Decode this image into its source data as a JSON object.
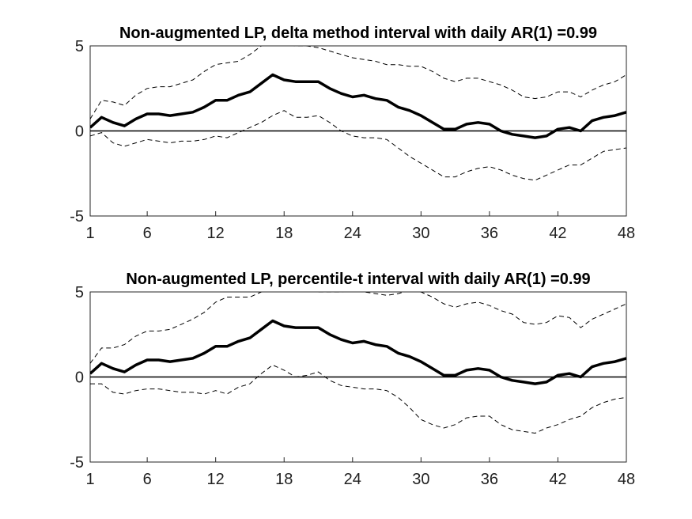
{
  "chart_data": [
    {
      "type": "line",
      "title": "Non-augmented LP, delta method interval with daily AR(1) =0.99",
      "xlabel": "",
      "ylabel": "",
      "xlim": [
        1,
        48
      ],
      "ylim": [
        -5,
        5
      ],
      "xticks": [
        1,
        6,
        12,
        18,
        24,
        30,
        36,
        42,
        48
      ],
      "yticks": [
        -5,
        0,
        5
      ],
      "zero_line": true,
      "grid": false,
      "x": [
        1,
        2,
        3,
        4,
        5,
        6,
        7,
        8,
        9,
        10,
        11,
        12,
        13,
        14,
        15,
        16,
        17,
        18,
        19,
        20,
        21,
        22,
        23,
        24,
        25,
        26,
        27,
        28,
        29,
        30,
        31,
        32,
        33,
        34,
        35,
        36,
        37,
        38,
        39,
        40,
        41,
        42,
        43,
        44,
        45,
        46,
        47,
        48
      ],
      "series": [
        {
          "style": "solid-thick",
          "values": [
            0.2,
            0.8,
            0.5,
            0.3,
            0.7,
            1.0,
            1.0,
            0.9,
            1.0,
            1.1,
            1.4,
            1.8,
            1.8,
            2.1,
            2.3,
            2.8,
            3.3,
            3.0,
            2.9,
            2.9,
            2.9,
            2.5,
            2.2,
            2.0,
            2.1,
            1.9,
            1.8,
            1.4,
            1.2,
            0.9,
            0.5,
            0.1,
            0.1,
            0.4,
            0.5,
            0.4,
            0.0,
            -0.2,
            -0.3,
            -0.4,
            -0.3,
            0.1,
            0.2,
            0.0,
            0.6,
            0.8,
            0.9,
            1.1
          ]
        },
        {
          "style": "dashed",
          "values": [
            0.7,
            1.8,
            1.7,
            1.5,
            2.1,
            2.5,
            2.6,
            2.6,
            2.8,
            3.0,
            3.5,
            3.9,
            4.0,
            4.1,
            4.5,
            5.0,
            5.3,
            5.1,
            5.0,
            5.0,
            4.9,
            4.7,
            4.5,
            4.3,
            4.2,
            4.1,
            3.9,
            3.9,
            3.8,
            3.8,
            3.5,
            3.1,
            2.9,
            3.1,
            3.1,
            2.9,
            2.7,
            2.4,
            2.0,
            1.9,
            2.0,
            2.3,
            2.3,
            2.0,
            2.4,
            2.7,
            2.9,
            3.3
          ]
        },
        {
          "style": "dashed",
          "values": [
            -0.3,
            -0.1,
            -0.7,
            -0.9,
            -0.7,
            -0.5,
            -0.6,
            -0.7,
            -0.6,
            -0.6,
            -0.5,
            -0.3,
            -0.4,
            -0.1,
            0.2,
            0.5,
            0.9,
            1.2,
            0.8,
            0.8,
            0.9,
            0.5,
            0.0,
            -0.3,
            -0.4,
            -0.4,
            -0.5,
            -1.0,
            -1.5,
            -1.9,
            -2.3,
            -2.7,
            -2.7,
            -2.4,
            -2.2,
            -2.1,
            -2.3,
            -2.6,
            -2.8,
            -2.9,
            -2.6,
            -2.3,
            -2.0,
            -2.0,
            -1.6,
            -1.2,
            -1.1,
            -1.0
          ]
        }
      ]
    },
    {
      "type": "line",
      "title": "Non-augmented LP, percentile-t interval with daily AR(1) =0.99",
      "xlabel": "",
      "ylabel": "",
      "xlim": [
        1,
        48
      ],
      "ylim": [
        -5,
        5
      ],
      "xticks": [
        1,
        6,
        12,
        18,
        24,
        30,
        36,
        42,
        48
      ],
      "yticks": [
        -5,
        0,
        5
      ],
      "zero_line": true,
      "grid": false,
      "x": [
        1,
        2,
        3,
        4,
        5,
        6,
        7,
        8,
        9,
        10,
        11,
        12,
        13,
        14,
        15,
        16,
        17,
        18,
        19,
        20,
        21,
        22,
        23,
        24,
        25,
        26,
        27,
        28,
        29,
        30,
        31,
        32,
        33,
        34,
        35,
        36,
        37,
        38,
        39,
        40,
        41,
        42,
        43,
        44,
        45,
        46,
        47,
        48
      ],
      "series": [
        {
          "style": "solid-thick",
          "values": [
            0.2,
            0.8,
            0.5,
            0.3,
            0.7,
            1.0,
            1.0,
            0.9,
            1.0,
            1.1,
            1.4,
            1.8,
            1.8,
            2.1,
            2.3,
            2.8,
            3.3,
            3.0,
            2.9,
            2.9,
            2.9,
            2.5,
            2.2,
            2.0,
            2.1,
            1.9,
            1.8,
            1.4,
            1.2,
            0.9,
            0.5,
            0.1,
            0.1,
            0.4,
            0.5,
            0.4,
            0.0,
            -0.2,
            -0.3,
            -0.4,
            -0.3,
            0.1,
            0.2,
            0.0,
            0.6,
            0.8,
            0.9,
            1.1
          ]
        },
        {
          "style": "dashed",
          "values": [
            0.8,
            1.7,
            1.7,
            1.9,
            2.4,
            2.7,
            2.7,
            2.8,
            3.1,
            3.4,
            3.8,
            4.4,
            4.7,
            4.7,
            4.7,
            5.0,
            5.4,
            5.3,
            5.2,
            5.1,
            5.0,
            5.0,
            5.0,
            5.1,
            5.0,
            4.9,
            4.8,
            4.9,
            5.1,
            5.0,
            4.7,
            4.3,
            4.1,
            4.3,
            4.4,
            4.2,
            3.9,
            3.7,
            3.2,
            3.1,
            3.2,
            3.6,
            3.5,
            2.9,
            3.4,
            3.7,
            4.0,
            4.3
          ]
        },
        {
          "style": "dashed",
          "values": [
            -0.4,
            -0.4,
            -0.9,
            -1.0,
            -0.8,
            -0.7,
            -0.7,
            -0.8,
            -0.9,
            -0.9,
            -1.0,
            -0.8,
            -1.0,
            -0.6,
            -0.4,
            0.2,
            0.7,
            0.4,
            0.0,
            0.1,
            0.3,
            -0.2,
            -0.5,
            -0.6,
            -0.7,
            -0.7,
            -0.8,
            -1.2,
            -1.8,
            -2.5,
            -2.8,
            -3.0,
            -2.8,
            -2.4,
            -2.3,
            -2.3,
            -2.8,
            -3.1,
            -3.2,
            -3.3,
            -3.0,
            -2.8,
            -2.5,
            -2.3,
            -1.8,
            -1.5,
            -1.3,
            -1.2
          ]
        }
      ]
    }
  ]
}
